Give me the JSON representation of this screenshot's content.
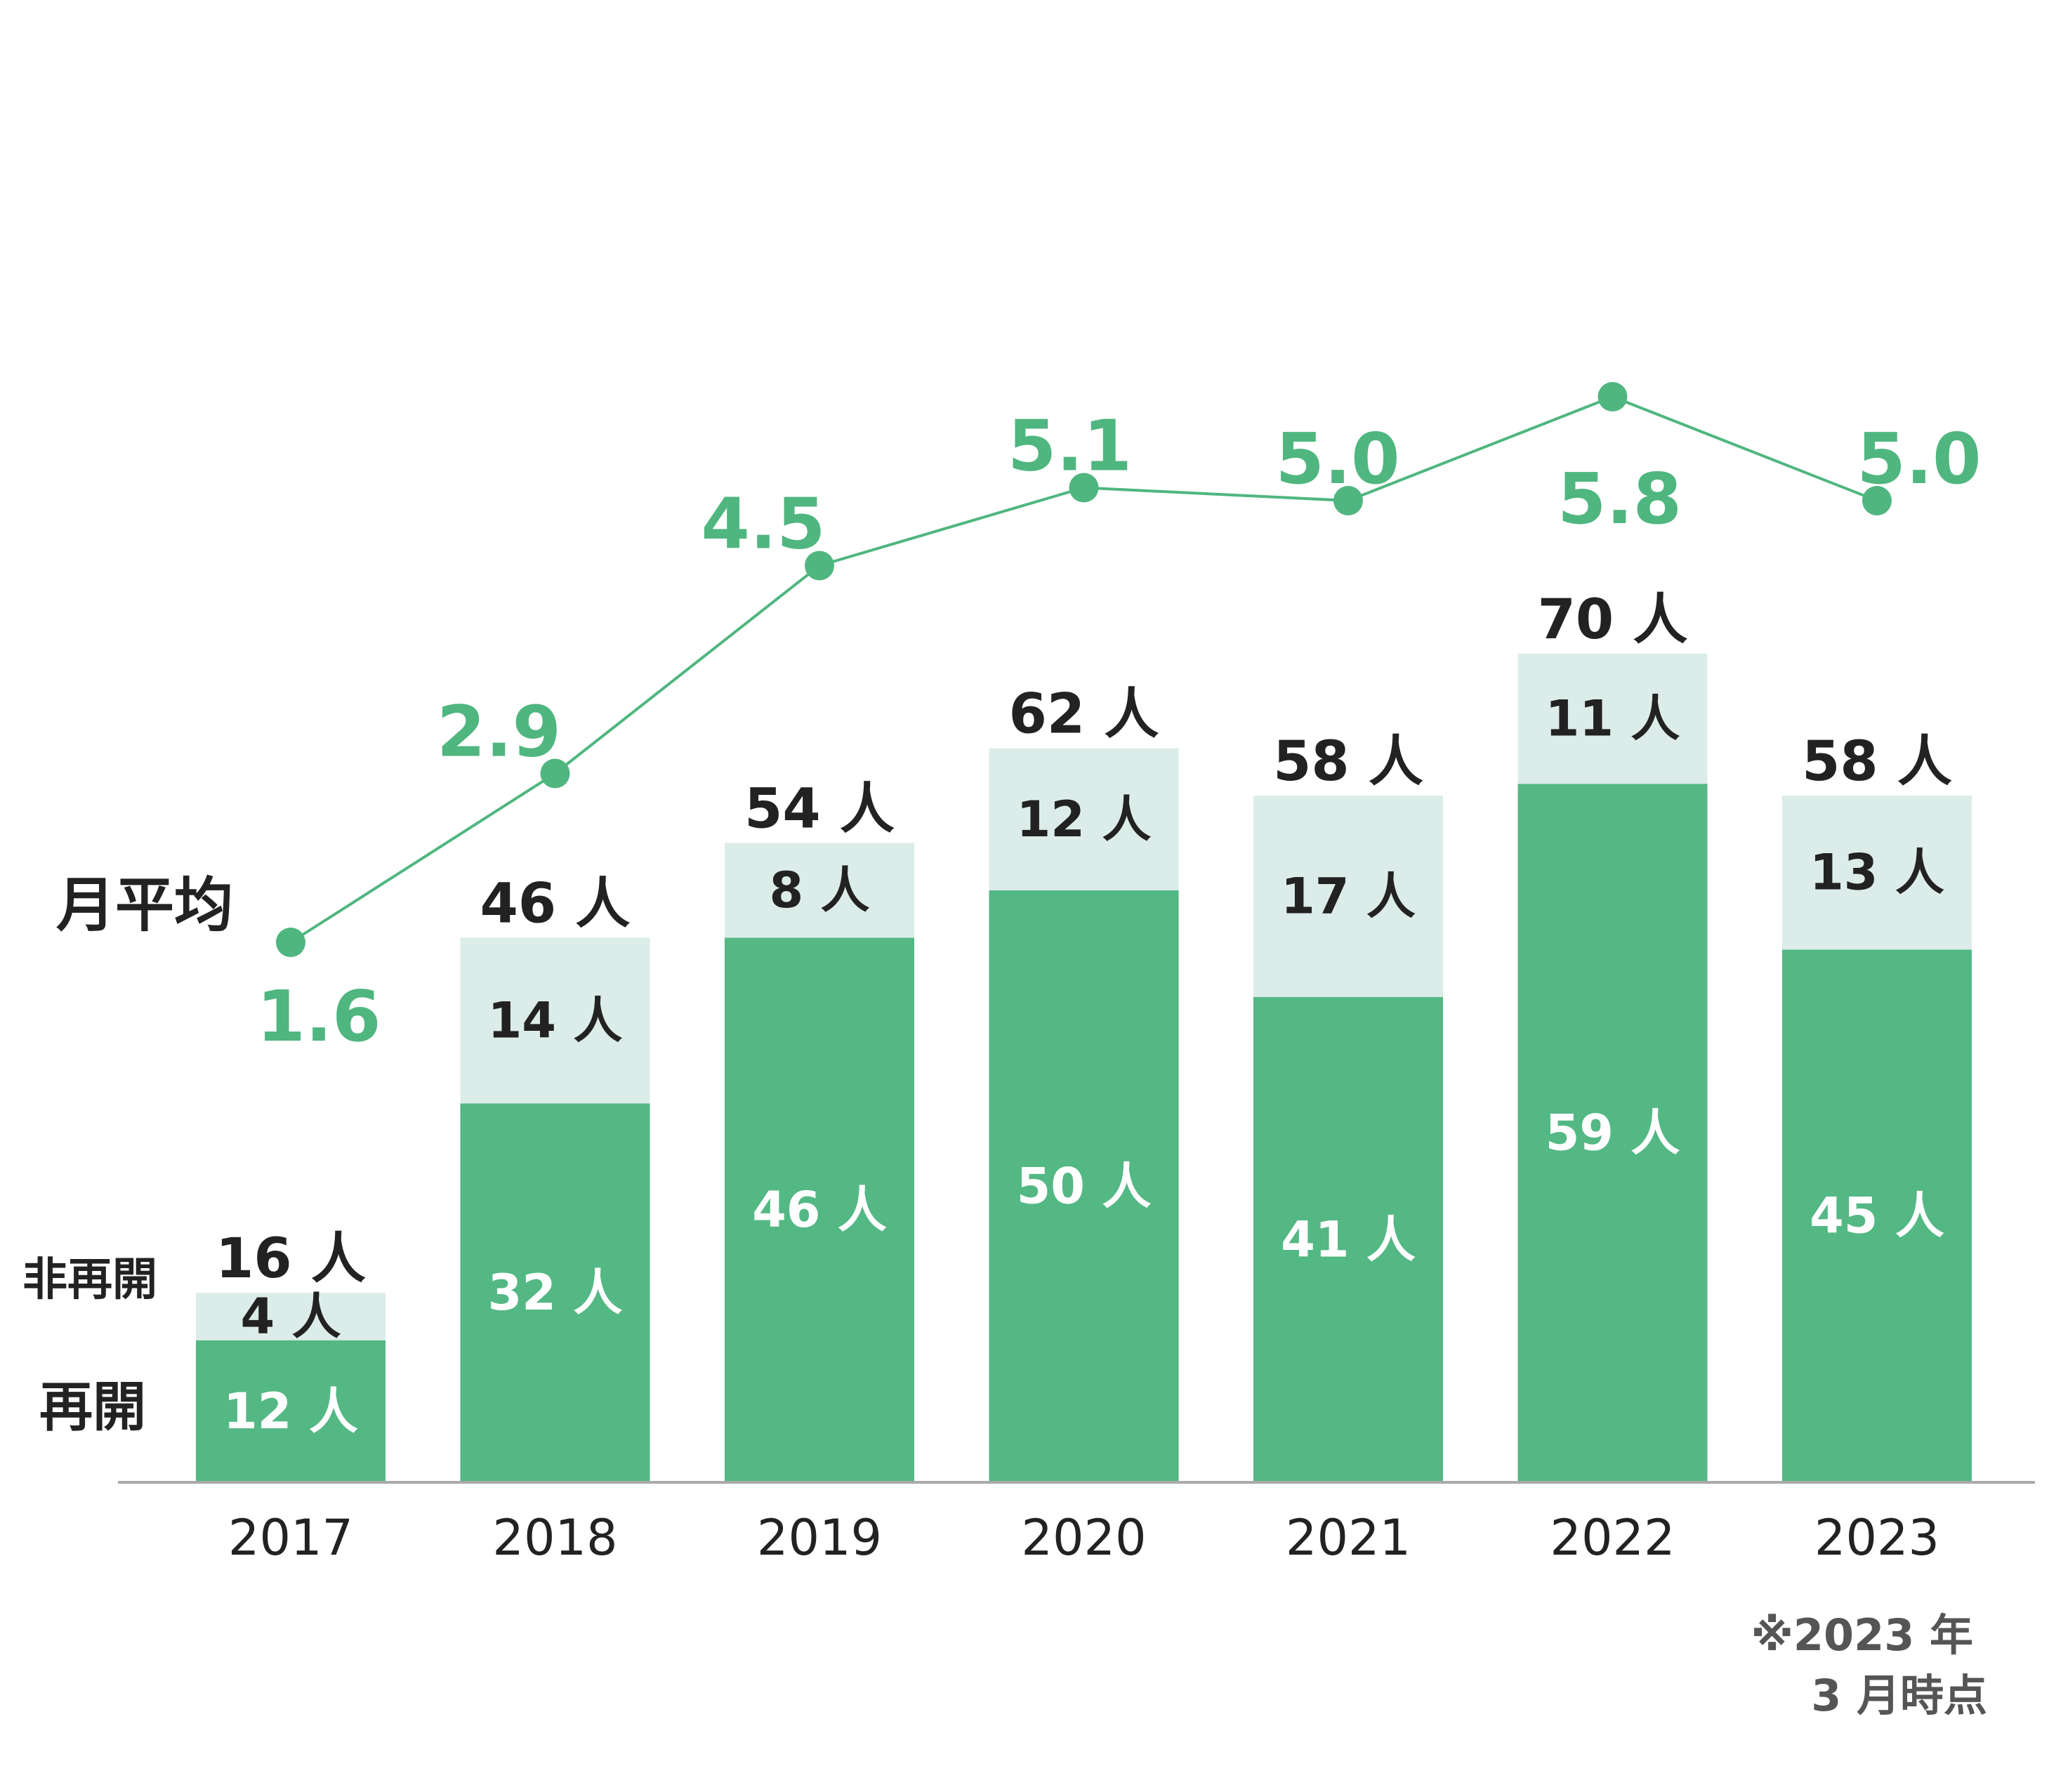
{
  "chart_data": {
    "type": "bar",
    "stacked": true,
    "categories": [
      "2017",
      "2018",
      "2019",
      "2020",
      "2021",
      "2022",
      "2023"
    ],
    "unit": "人",
    "series": [
      {
        "name": "再開",
        "values": [
          12,
          32,
          46,
          50,
          41,
          59,
          45
        ],
        "color": "#53b884"
      },
      {
        "name": "非再開",
        "values": [
          4,
          14,
          8,
          12,
          17,
          11,
          13
        ],
        "color": "#dcece9"
      }
    ],
    "totals": [
      16,
      46,
      54,
      62,
      58,
      70,
      58
    ],
    "line_series": {
      "name": "月平均",
      "values": [
        1.6,
        2.9,
        4.5,
        5.1,
        5.0,
        5.8,
        5.0
      ],
      "display": [
        "1.6",
        "2.9",
        "4.5",
        "5.1",
        "5.0",
        "5.8",
        "5.0"
      ],
      "color": "#4fb67f"
    },
    "legend": {
      "stopped": "非再開",
      "resumed": "再開",
      "average": "月平均"
    },
    "note_lines": [
      "※2023 年",
      "3 月時点"
    ],
    "text_color": "#222222",
    "axis_color": "#aaaaaa",
    "grid": false
  }
}
